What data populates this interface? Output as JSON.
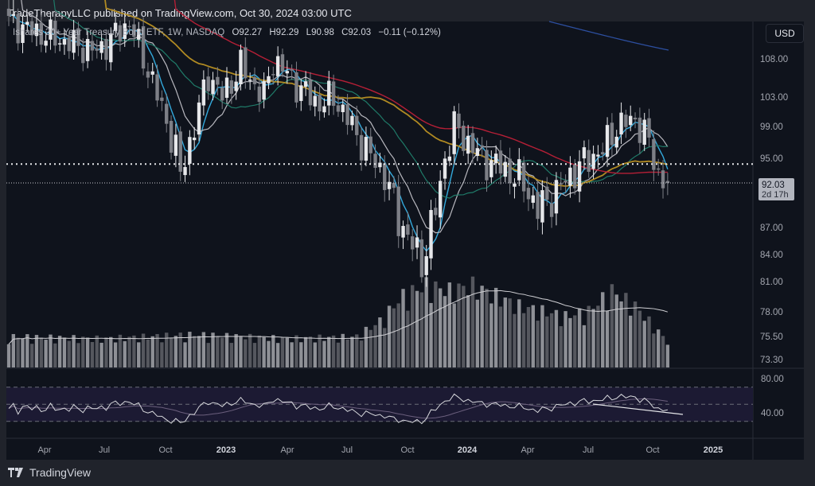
{
  "header": {
    "published": "TradeTherapyLLC published on TradingView.com, Oct 30, 2024 03:00 UTC"
  },
  "legend": {
    "symbol": "Ishares 20+ Year Treasury Bond ETF, 1W, NASDAQ",
    "open": "O92.27",
    "high": "H92.29",
    "low": "L90.98",
    "close": "C92.03",
    "change": "−0.11 (−0.12%)"
  },
  "currency_button": "USD",
  "price_axis": {
    "ticks": [
      "108.00",
      "103.00",
      "99.00",
      "95.00",
      "87.00",
      "84.00",
      "81.00",
      "78.00",
      "75.50",
      "73.30"
    ],
    "last_price": "92.03",
    "countdown": "2d 17h"
  },
  "rsi_axis": {
    "ticks": [
      "80.00",
      "40.00"
    ]
  },
  "time_axis": {
    "labels": [
      "Apr",
      "Jul",
      "Oct",
      "2023",
      "Apr",
      "Jul",
      "Oct",
      "2024",
      "Apr",
      "Jul",
      "Oct",
      "2025"
    ]
  },
  "footer": {
    "brand": "TradingView"
  },
  "colors": {
    "up": "#e6e7ea",
    "down": "#7d7f86",
    "ma_fast": "#33a9dc",
    "ma_20": "#b8b8bf",
    "ma_50": "#1f7a68",
    "ma_100": "#b08a22",
    "ma_200": "#b51f36",
    "ma_long": "#2d4fa0"
  },
  "chart_data": {
    "type": "candlestick",
    "title": "Ishares 20+ Year Treasury Bond ETF, 1W, NASDAQ",
    "ylabel": "USD",
    "ylim": [
      73.3,
      110
    ],
    "weekly_close_keypoints": [
      [
        0,
        113
      ],
      [
        9,
        111
      ],
      [
        19,
        109
      ],
      [
        26,
        113
      ],
      [
        31,
        105
      ],
      [
        36,
        96
      ],
      [
        37,
        93
      ],
      [
        40,
        99
      ],
      [
        43,
        106
      ],
      [
        46,
        103
      ],
      [
        50,
        107
      ],
      [
        55,
        103
      ],
      [
        57,
        108
      ],
      [
        60,
        106
      ],
      [
        63,
        104
      ],
      [
        67,
        102
      ],
      [
        70,
        103
      ],
      [
        74,
        99
      ],
      [
        77,
        96
      ],
      [
        81,
        93
      ],
      [
        84,
        88
      ],
      [
        87,
        85
      ],
      [
        89,
        83
      ],
      [
        92,
        89
      ],
      [
        94,
        95
      ],
      [
        96,
        99
      ],
      [
        99,
        97
      ],
      [
        102,
        95
      ],
      [
        106,
        94
      ],
      [
        111,
        92
      ],
      [
        114,
        89
      ],
      [
        118,
        91
      ],
      [
        121,
        93
      ],
      [
        125,
        95
      ],
      [
        128,
        96
      ],
      [
        131,
        99
      ],
      [
        135,
        100
      ],
      [
        138,
        97
      ],
      [
        140,
        93
      ],
      [
        142,
        92.03
      ]
    ],
    "volume_relative_keypoints": [
      [
        0,
        30
      ],
      [
        20,
        28
      ],
      [
        40,
        32
      ],
      [
        60,
        28
      ],
      [
        75,
        30
      ],
      [
        80,
        45
      ],
      [
        85,
        70
      ],
      [
        90,
        80
      ],
      [
        95,
        75
      ],
      [
        100,
        80
      ],
      [
        105,
        70
      ],
      [
        110,
        60
      ],
      [
        115,
        55
      ],
      [
        120,
        50
      ],
      [
        125,
        55
      ],
      [
        130,
        75
      ],
      [
        135,
        60
      ],
      [
        142,
        25
      ]
    ],
    "horizontal_lines": [
      94.3,
      92.03
    ],
    "rsi": {
      "levels": [
        70,
        50,
        30
      ]
    }
  }
}
